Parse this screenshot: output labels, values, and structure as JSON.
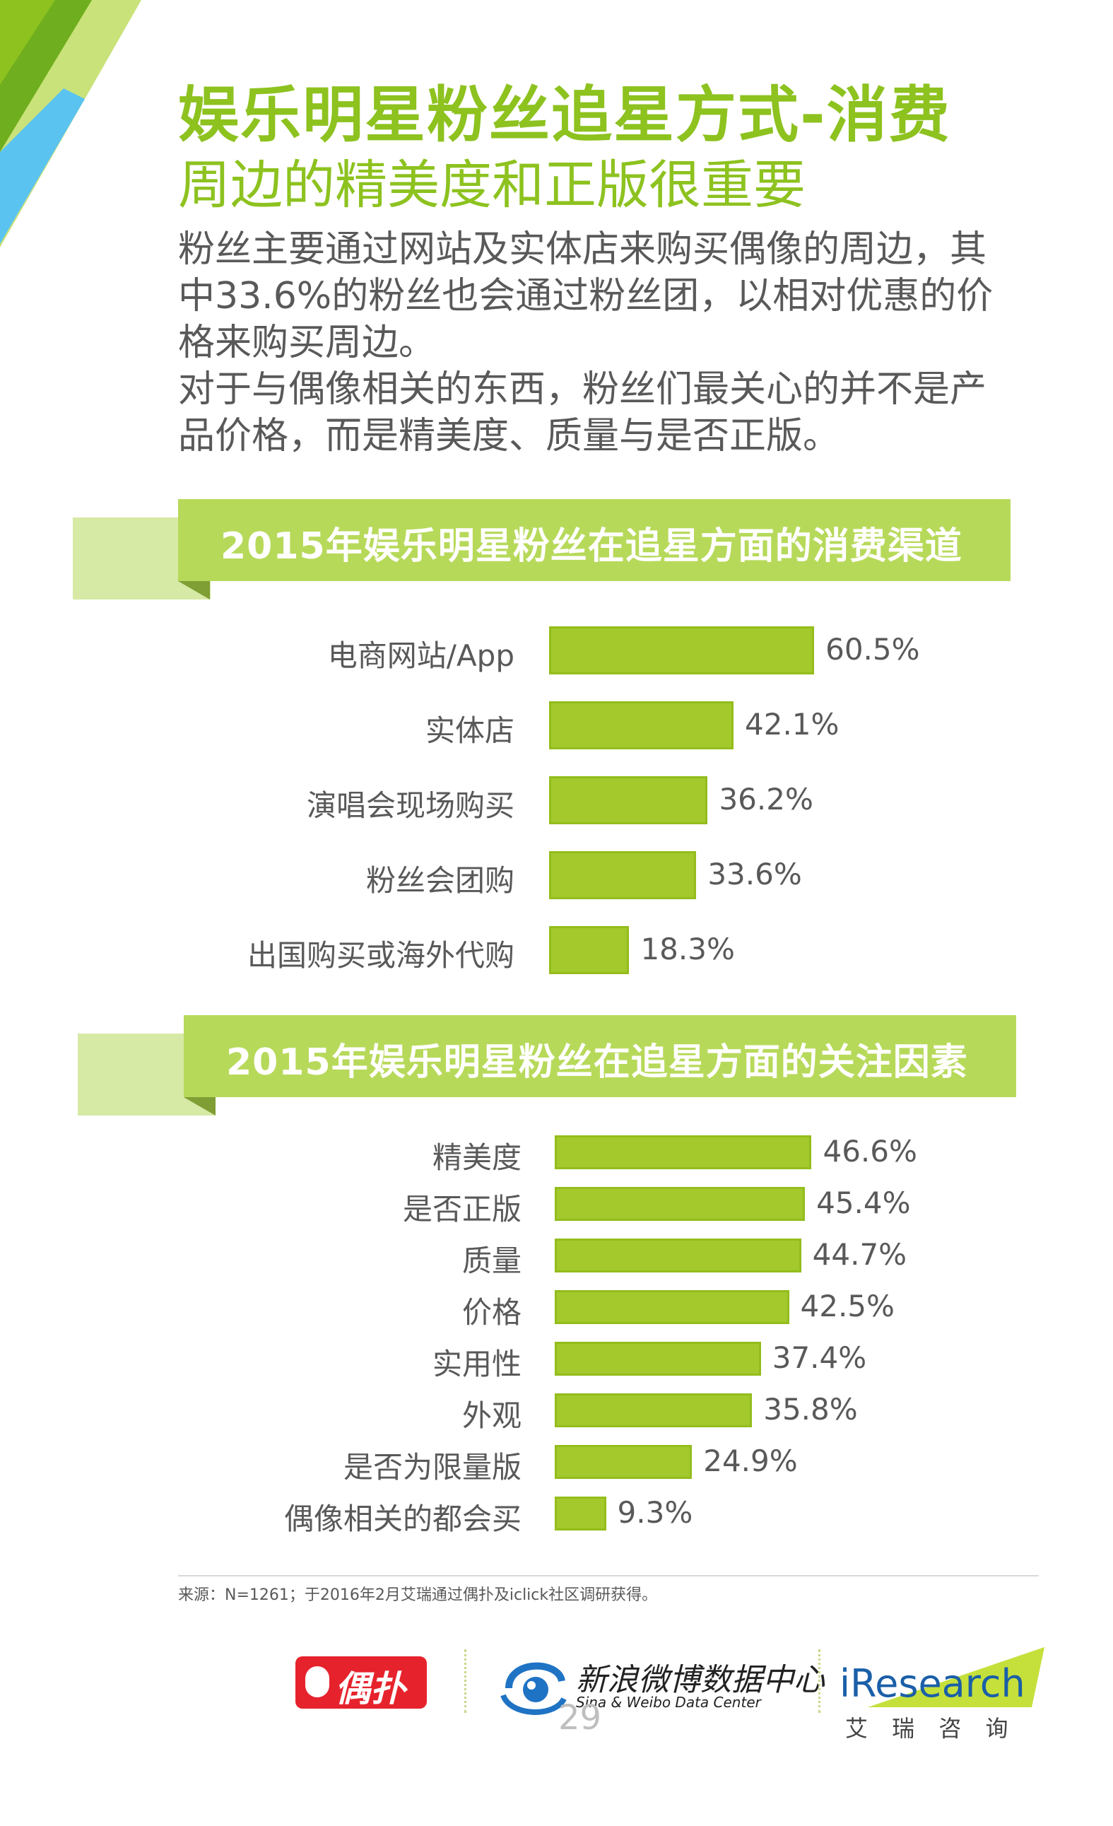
{
  "header": {
    "title": "娱乐明星粉丝追星方式-消费",
    "subtitle": "周边的精美度和正版很重要"
  },
  "intro": {
    "lines": [
      "粉丝主要通过网站及实体店来购买偶像的周边，其",
      "中33.6%的粉丝也会通过粉丝团，以相对优惠的价",
      "格来购买周边。",
      "对于与偶像相关的东西，粉丝们最关心的并不是产",
      "品价格，而是精美度、质量与是否正版。"
    ]
  },
  "colors": {
    "title_green": "#8dc21f",
    "bar_green": "#a3c92d",
    "banner_green": "#b7d95a",
    "banner_back": "#d6e9a5",
    "text_gray": "#595959",
    "corner_blue": "#5bc3f0"
  },
  "chart_data": [
    {
      "type": "bar",
      "orientation": "horizontal",
      "title": "2015年娱乐明星粉丝在追星方面的消费渠道",
      "categories": [
        "电商网站/App",
        "实体店",
        "演唱会现场购买",
        "粉丝会团购",
        "出国购买或海外代购"
      ],
      "values": [
        60.5,
        42.1,
        36.2,
        33.6,
        18.3
      ],
      "value_labels": [
        "60.5%",
        "42.1%",
        "36.2%",
        "33.6%",
        "18.3%"
      ],
      "unit": "%",
      "grid": false,
      "legend": "none"
    },
    {
      "type": "bar",
      "orientation": "horizontal",
      "title": "2015年娱乐明星粉丝在追星方面的关注因素",
      "categories": [
        "精美度",
        "是否正版",
        "质量",
        "价格",
        "实用性",
        "外观",
        "是否为限量版",
        "偶像相关的都会买"
      ],
      "values": [
        46.6,
        45.4,
        44.7,
        42.5,
        37.4,
        35.8,
        24.9,
        9.3
      ],
      "value_labels": [
        "46.6%",
        "45.4%",
        "44.7%",
        "42.5%",
        "37.4%",
        "35.8%",
        "24.9%",
        "9.3%"
      ],
      "unit": "%",
      "grid": false,
      "legend": "none"
    }
  ],
  "source": "来源：N=1261；于2016年2月艾瑞通过偶扑及iclick社区调研获得。",
  "footer": {
    "logo1_text": "偶扑",
    "logo2_cn": "新浪微博数据中心",
    "logo2_en": "Sina & Weibo Data Center",
    "logo3_en": "iResearch",
    "logo3_cn": "艾 瑞 咨 询",
    "page_number": "29"
  }
}
